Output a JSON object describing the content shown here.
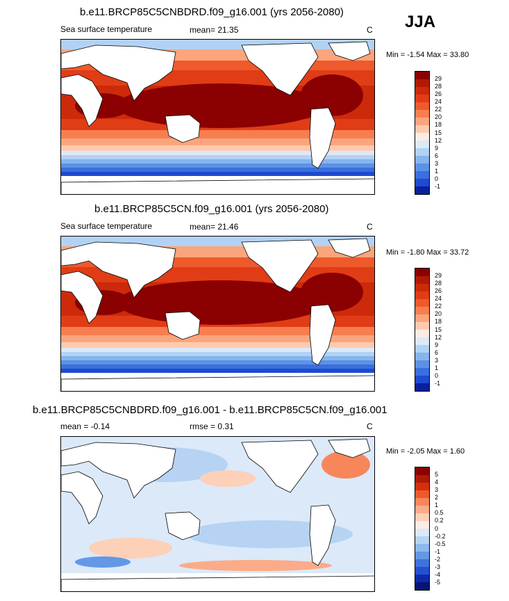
{
  "season": "JJA",
  "panels": [
    {
      "title": "b.e11.BRCP85C5CNBDRD.f09_g16.001 (yrs 2056-2080)",
      "left_label": "Sea surface temperature",
      "center_label": "mean=  21.35",
      "right_label": "C",
      "minmax": "Min =  -1.54 Max =  33.80"
    },
    {
      "title": "b.e11.BRCP85C5CN.f09_g16.001 (yrs 2056-2080)",
      "left_label": "Sea surface temperature",
      "center_label": "mean=  21.46",
      "right_label": "C",
      "minmax": "Min =  -1.80 Max =  33.72"
    },
    {
      "title": "b.e11.BRCP85C5CNBDRD.f09_g16.001 - b.e11.BRCP85C5CN.f09_g16.001",
      "left_label": "mean =  -0.14",
      "center_label": "rmse =   0.31",
      "right_label": "C",
      "minmax": "Min =  -2.05 Max =   1.60"
    }
  ],
  "colorbars": {
    "sst": {
      "labels": [
        "29",
        "28",
        "26",
        "24",
        "22",
        "20",
        "18",
        "15",
        "12",
        "9",
        "6",
        "3",
        "1",
        "0",
        "-1"
      ],
      "colors": [
        "#8b0000",
        "#b01a05",
        "#cc2a0a",
        "#e03d16",
        "#ee5a2c",
        "#f77e4f",
        "#fba57c",
        "#fccab0",
        "#fcece2",
        "#dbe9f9",
        "#b2d2f5",
        "#86b4ee",
        "#5c92e6",
        "#3a6fdd",
        "#1f4ad1",
        "#0a1f9e"
      ]
    },
    "diff": {
      "labels": [
        "5",
        "4",
        "3",
        "2",
        "1",
        "0.5",
        "0.2",
        "0",
        "-0.2",
        "-0.5",
        "-1",
        "-2",
        "-3",
        "-4",
        "-5"
      ],
      "colors": [
        "#8b0000",
        "#b01a05",
        "#d4300e",
        "#ec5a2a",
        "#f7865a",
        "#fbab88",
        "#fdd0b8",
        "#fdece2",
        "#dbe9f9",
        "#b6d3f4",
        "#8cb8ee",
        "#6398e6",
        "#3f73dc",
        "#2450cf",
        "#0e2aab",
        "#061575"
      ]
    }
  }
}
